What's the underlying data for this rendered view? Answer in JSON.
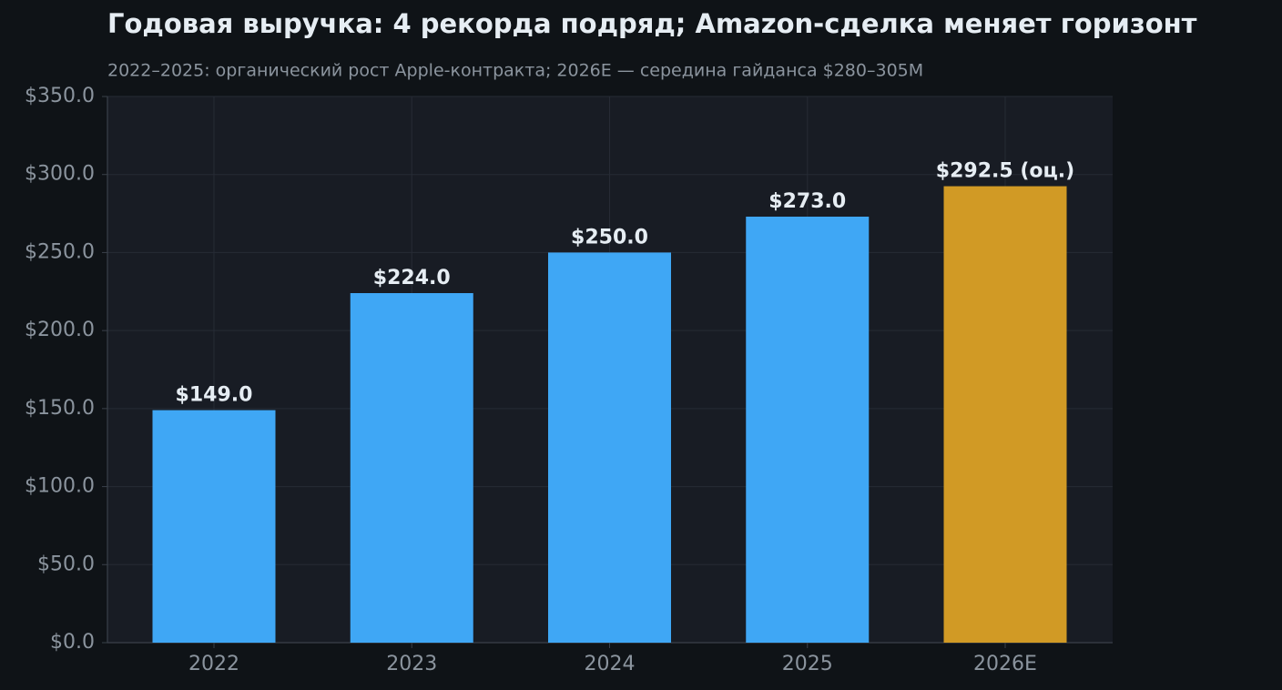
{
  "chart_data": {
    "type": "bar",
    "title": "Годовая выручка: 4 рекорда подряд; Amazon-сделка меняет горизонт",
    "subtitle": "2022–2025: органический рост Apple-контракта; 2026E — середина гайданса $280–305M",
    "categories": [
      "2022",
      "2023",
      "2024",
      "2025",
      "2026E"
    ],
    "values": [
      149.0,
      224.0,
      250.0,
      273.0,
      292.5
    ],
    "value_labels": [
      "$149.0",
      "$224.0",
      "$250.0",
      "$273.0",
      "$292.5 (оц.)"
    ],
    "colors": [
      "#3fa7f5",
      "#3fa7f5",
      "#3fa7f5",
      "#3fa7f5",
      "#d19a25"
    ],
    "ylim": [
      0,
      350
    ],
    "yticks": [
      {
        "value": 0,
        "label": "$0.0"
      },
      {
        "value": 50,
        "label": "$50.0"
      },
      {
        "value": 100,
        "label": "$100.0"
      },
      {
        "value": 150,
        "label": "$150.0"
      },
      {
        "value": 200,
        "label": "$200.0"
      },
      {
        "value": 250,
        "label": "$250.0"
      },
      {
        "value": 300,
        "label": "$300.0"
      },
      {
        "value": 350,
        "label": "$350.0"
      }
    ],
    "grid": true
  }
}
